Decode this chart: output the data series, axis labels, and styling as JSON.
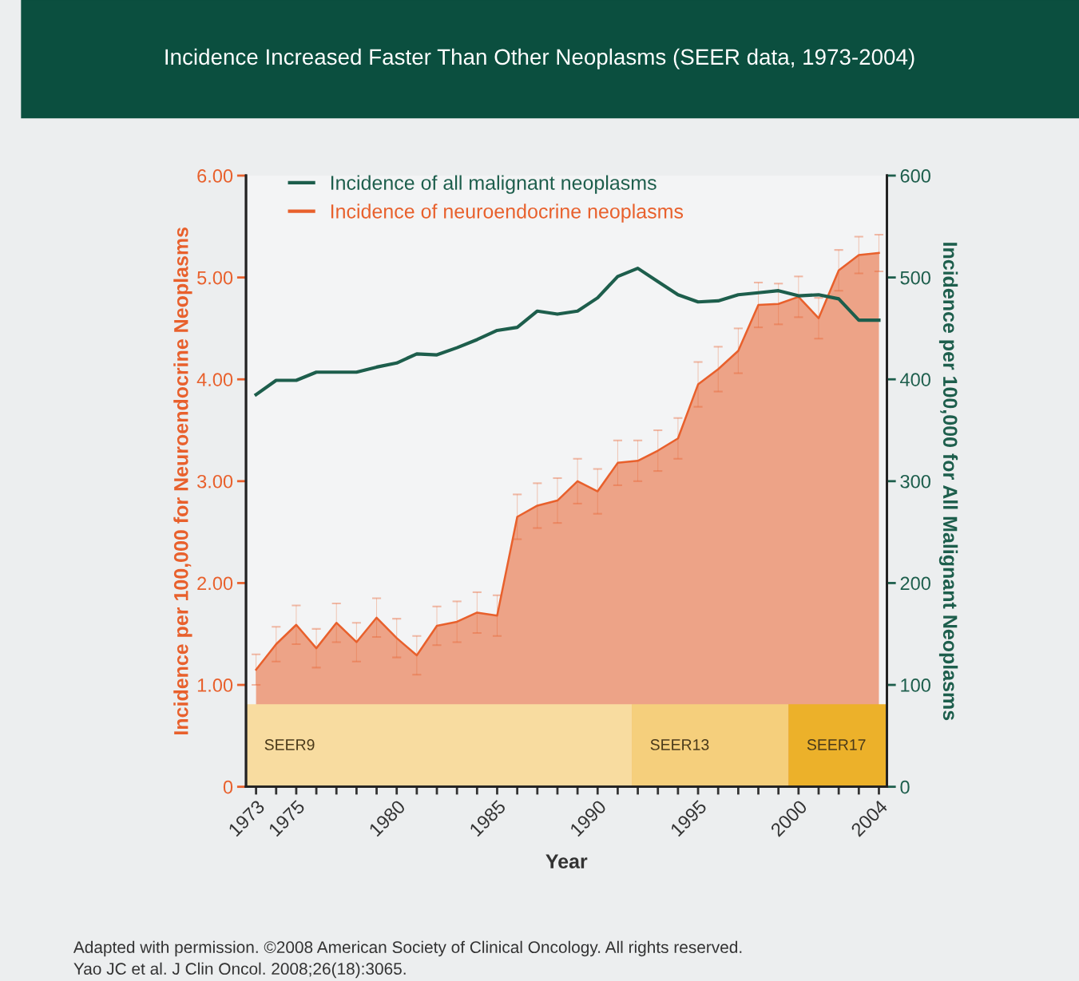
{
  "chart_data": {
    "type": "area",
    "title": "Incidence Increased Faster Than Other Neoplasms (SEER data, 1973-2004)",
    "xlabel": "Year",
    "ylabel": "Incidence per 100,000 for Neuroendocrine Neoplasms",
    "y2label": "Incidence per 100,000 for All Malignant Neoplasms",
    "x": [
      1973,
      1974,
      1975,
      1976,
      1977,
      1978,
      1979,
      1980,
      1981,
      1982,
      1983,
      1984,
      1985,
      1986,
      1987,
      1988,
      1989,
      1990,
      1991,
      1992,
      1993,
      1994,
      1995,
      1996,
      1997,
      1998,
      1999,
      2000,
      2001,
      2002,
      2003,
      2004
    ],
    "series": [
      {
        "name": "Incidence of all malignant neoplasms",
        "type": "line",
        "axis": "y2",
        "color": "#1d5e4c",
        "values": [
          385,
          399,
          399,
          407,
          407,
          407,
          412,
          416,
          425,
          424,
          431,
          439,
          448,
          451,
          467,
          464,
          467,
          480,
          501,
          509,
          496,
          483,
          476,
          477,
          483,
          485,
          487,
          482,
          483,
          479,
          458,
          458
        ]
      },
      {
        "name": "Incidence of neuroendocrine neoplasms",
        "color": "#e8602c",
        "values": [
          1.15,
          1.4,
          1.59,
          1.36,
          1.61,
          1.42,
          1.66,
          1.46,
          1.29,
          1.58,
          1.62,
          1.71,
          1.68,
          2.65,
          2.76,
          2.81,
          3.0,
          2.9,
          3.18,
          3.2,
          3.3,
          3.42,
          3.95,
          4.1,
          4.28,
          4.73,
          4.74,
          4.81,
          4.6,
          5.07,
          5.22,
          5.24
        ],
        "errors": [
          0.15,
          0.17,
          0.19,
          0.19,
          0.19,
          0.19,
          0.19,
          0.19,
          0.19,
          0.19,
          0.2,
          0.2,
          0.2,
          0.22,
          0.22,
          0.22,
          0.22,
          0.22,
          0.22,
          0.2,
          0.2,
          0.2,
          0.22,
          0.22,
          0.22,
          0.22,
          0.2,
          0.2,
          0.2,
          0.2,
          0.18,
          0.18
        ]
      }
    ],
    "xlim": [
      1972.5,
      2004.4
    ],
    "xticks": [
      {
        "value": 1973,
        "label": "1973"
      },
      {
        "value": 1974,
        "label": null
      },
      {
        "value": 1975,
        "label": "1975"
      },
      {
        "value": 1976,
        "label": null
      },
      {
        "value": 1977,
        "label": null
      },
      {
        "value": 1978,
        "label": null
      },
      {
        "value": 1979,
        "label": null
      },
      {
        "value": 1980,
        "label": "1980"
      },
      {
        "value": 1981,
        "label": null
      },
      {
        "value": 1982,
        "label": null
      },
      {
        "value": 1983,
        "label": null
      },
      {
        "value": 1984,
        "label": null
      },
      {
        "value": 1985,
        "label": "1985"
      },
      {
        "value": 1986,
        "label": null
      },
      {
        "value": 1987,
        "label": null
      },
      {
        "value": 1988,
        "label": null
      },
      {
        "value": 1989,
        "label": null
      },
      {
        "value": 1990,
        "label": "1990"
      },
      {
        "value": 1991,
        "label": null
      },
      {
        "value": 1992,
        "label": null
      },
      {
        "value": 1993,
        "label": null
      },
      {
        "value": 1994,
        "label": null
      },
      {
        "value": 1995,
        "label": "1995"
      },
      {
        "value": 1996,
        "label": null
      },
      {
        "value": 1997,
        "label": null
      },
      {
        "value": 1998,
        "label": null
      },
      {
        "value": 1999,
        "label": null
      },
      {
        "value": 2000,
        "label": "2000"
      },
      {
        "value": 2001,
        "label": null
      },
      {
        "value": 2002,
        "label": null
      },
      {
        "value": 2003,
        "label": null
      },
      {
        "value": 2004,
        "label": "2004"
      }
    ],
    "ylim": [
      0,
      6
    ],
    "yticks": [
      0,
      {
        "value": 1,
        "label": "1.00"
      },
      {
        "value": 2,
        "label": "2.00"
      },
      {
        "value": 3,
        "label": "3.00"
      },
      {
        "value": 4,
        "label": "4.00"
      },
      {
        "value": 5,
        "label": "5.00"
      },
      {
        "value": 6,
        "label": "6.00"
      }
    ],
    "y2lim": [
      0,
      600
    ],
    "y2ticks": [
      0,
      100,
      200,
      300,
      400,
      500,
      600
    ],
    "bands": [
      {
        "axis": "x",
        "from": 1972.5,
        "to": 1991.7,
        "label": "SEER9",
        "color": "#f8dca0"
      },
      {
        "axis": "x",
        "from": 1991.7,
        "to": 1999.5,
        "label": "SEER13",
        "color": "#f5cf7c"
      },
      {
        "axis": "x",
        "from": 1999.5,
        "to": 2004.4,
        "label": "SEER17",
        "color": "#ecb12a"
      }
    ],
    "legend": "top left",
    "grid": false,
    "marker": "none",
    "line_style": "solid",
    "annotations": [
      "Adapted with permission. ©2008 American Society of Clinical Oncology. All rights reserved.",
      "Yao JC et al. J Clin Oncol. 2008;26(18):3065."
    ]
  }
}
